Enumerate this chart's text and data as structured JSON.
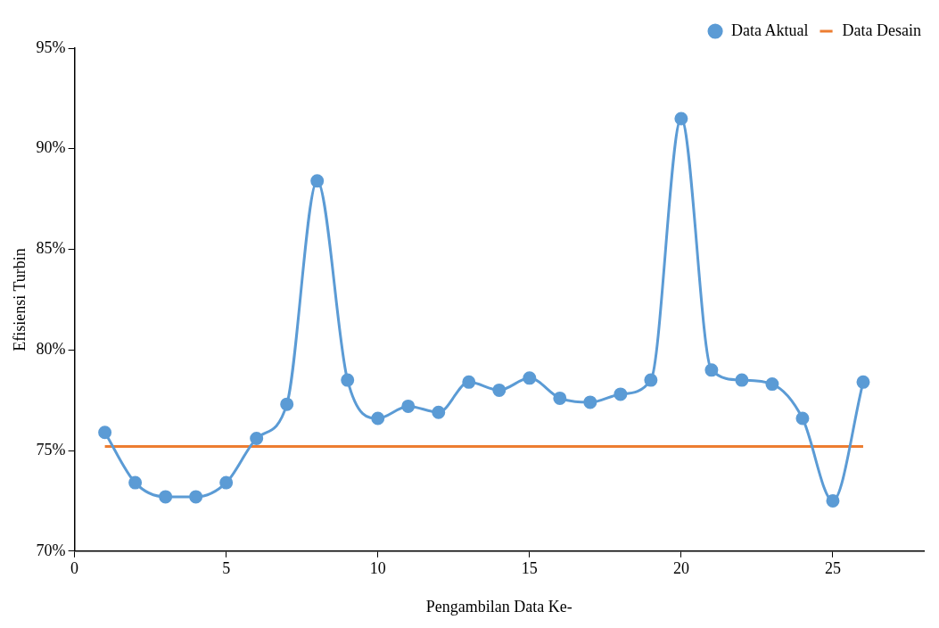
{
  "chart_data": {
    "type": "line",
    "xlabel": "Pengambilan Data Ke-",
    "ylabel": "Efisiensi Turbin",
    "x": [
      1,
      2,
      3,
      4,
      5,
      6,
      7,
      8,
      9,
      10,
      11,
      12,
      13,
      14,
      15,
      16,
      17,
      18,
      19,
      20,
      21,
      22,
      23,
      24,
      25,
      26
    ],
    "series": [
      {
        "name": "Data Aktual",
        "color": "#5b9bd5",
        "marker": "circle",
        "values": [
          75.9,
          73.4,
          72.7,
          72.7,
          73.4,
          75.6,
          77.3,
          88.4,
          78.5,
          76.6,
          77.2,
          76.9,
          78.4,
          78.0,
          78.6,
          77.6,
          77.4,
          77.8,
          78.5,
          91.5,
          79.0,
          78.5,
          78.3,
          76.6,
          72.5,
          78.4
        ]
      },
      {
        "name": "Data Desain",
        "color": "#ed7d31",
        "marker": "none",
        "x": [
          1,
          26
        ],
        "values": [
          75.2,
          75.2
        ]
      }
    ],
    "xlim": [
      0,
      28
    ],
    "xticks": [
      0,
      5,
      10,
      15,
      20,
      25
    ],
    "ylim": [
      70,
      95
    ],
    "yticks": [
      {
        "value": 70,
        "label": "70%"
      },
      {
        "value": 75,
        "label": "75%"
      },
      {
        "value": 80,
        "label": "80%"
      },
      {
        "value": 85,
        "label": "85%"
      },
      {
        "value": 90,
        "label": "90%"
      },
      {
        "value": 95,
        "label": "95%"
      }
    ],
    "grid": false,
    "legend": "top right"
  }
}
